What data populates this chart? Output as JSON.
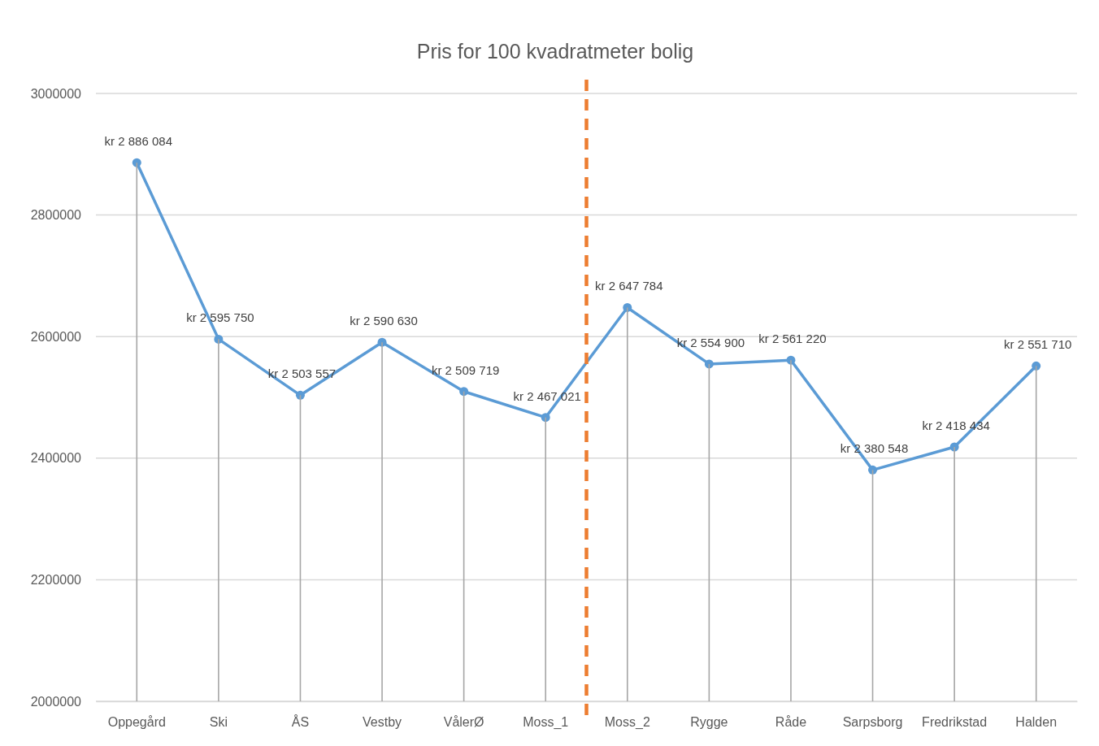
{
  "chart_data": {
    "type": "line",
    "title": "Pris for 100 kvadratmeter bolig",
    "categories": [
      "Oppegård",
      "Ski",
      "ÅS",
      "Vestby",
      "VålerØ",
      "Moss_1",
      "Moss_2",
      "Rygge",
      "Råde",
      "Sarpsborg",
      "Fredrikstad",
      "Halden"
    ],
    "series": [
      {
        "color": "#5b9bd5",
        "values": [
          2886084,
          2595750,
          2503557,
          2590630,
          2509719,
          2467021,
          2647784,
          2554900,
          2561220,
          2380548,
          2418434,
          2551710
        ],
        "value_labels": [
          "kr 2 886 084",
          "kr 2 595 750",
          "kr 2 503 557",
          "kr 2 590 630",
          "kr 2 509 719",
          "kr 2 467 021",
          "kr 2 647 784",
          "kr 2 554 900",
          "kr 2 561 220",
          "kr 2 380 548",
          "kr 2 418 434",
          "kr 2 551 710"
        ]
      },
      {
        "type": "bar",
        "color": "#a6a6a6",
        "values": [
          2886084,
          2595750,
          2503557,
          2590630,
          2509719,
          2467021,
          2647784,
          2554900,
          2561220,
          2380548,
          2418434,
          2551710
        ]
      }
    ],
    "ylim": [
      2000000,
      3000000
    ],
    "yticks": [
      2000000,
      2200000,
      2400000,
      2600000,
      2800000,
      3000000
    ],
    "grid": "y",
    "marker": "circle"
  }
}
